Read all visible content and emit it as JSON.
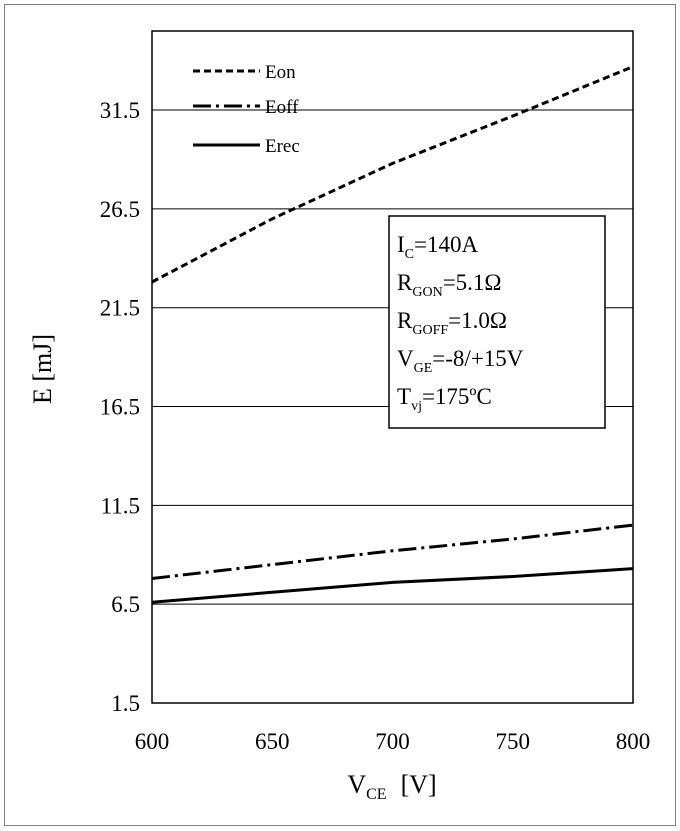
{
  "chart_data": {
    "type": "line",
    "xlabel_main": "V",
    "xlabel_sub": "CE",
    "xlabel_unit": "[V]",
    "ylabel": "E [mJ]",
    "xlim": [
      600,
      800
    ],
    "ylim": [
      1.5,
      35.5
    ],
    "x_ticks": [
      "600",
      "650",
      "700",
      "750",
      "800"
    ],
    "y_ticks": [
      "1.5",
      "6.5",
      "11.5",
      "16.5",
      "21.5",
      "26.5",
      "31.5"
    ],
    "grid": "horizontal",
    "legend_position": "top-left",
    "series": [
      {
        "name": "Eon",
        "style": "dashed",
        "x": [
          600,
          650,
          700,
          750,
          800
        ],
        "y": [
          22.8,
          26.0,
          28.8,
          31.2,
          33.7
        ]
      },
      {
        "name": "Eoff",
        "style": "dash-dot",
        "x": [
          600,
          650,
          700,
          750,
          800
        ],
        "y": [
          7.8,
          8.5,
          9.2,
          9.8,
          10.5
        ]
      },
      {
        "name": "Erec",
        "style": "solid",
        "x": [
          600,
          650,
          700,
          750,
          800
        ],
        "y": [
          6.6,
          7.1,
          7.6,
          7.9,
          8.3
        ]
      }
    ],
    "annotation": [
      {
        "main": "I",
        "sub": "C",
        "rest": "=140A"
      },
      {
        "main": "R",
        "sub": "GON",
        "rest": "=5.1Ω"
      },
      {
        "main": "R",
        "sub": "GOFF",
        "rest": "=1.0Ω"
      },
      {
        "main": "V",
        "sub": "GE",
        "rest": "=-8/+15V"
      },
      {
        "main": "T",
        "sub": "vj",
        "rest": "=175ºC"
      }
    ]
  },
  "colors": {
    "line": "#000000",
    "grid": "#000000",
    "frame": "#7f7f7f"
  }
}
